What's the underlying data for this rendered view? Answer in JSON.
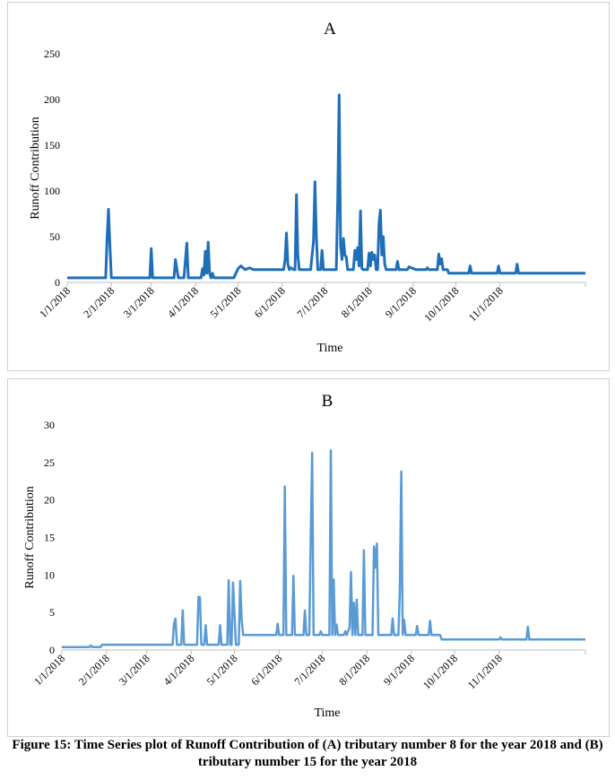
{
  "caption": "Figure 15: Time Series plot of Runoff Contribution of (A) tributary number 8 for the year 2018 and (B) tributary number 15 for the year 2018",
  "chart_data": [
    {
      "type": "line",
      "title": "A",
      "xlabel": "Time",
      "ylabel": "Runoff Contribution",
      "ylim": [
        0,
        250
      ],
      "yticks": [
        "0",
        "50",
        "100",
        "150",
        "200",
        "250"
      ],
      "xlim": [
        "2018-01-01",
        "2018-12-31"
      ],
      "xticks": [
        "1/1/2018",
        "2/1/2018",
        "3/1/2018",
        "4/1/2018",
        "5/1/2018",
        "6/1/2018",
        "7/1/2018",
        "8/1/2018",
        "9/1/2018",
        "10/1/2018",
        "11/1/2018"
      ],
      "grid": false,
      "legend": "none",
      "color": "#1f6fb8",
      "series": [
        {
          "points": [
            [
              "2018-01-01",
              5
            ],
            [
              "2018-01-28",
              5
            ],
            [
              "2018-01-29",
              50
            ],
            [
              "2018-01-30",
              80
            ],
            [
              "2018-01-31",
              40
            ],
            [
              "2018-02-01",
              5
            ],
            [
              "2018-02-28",
              5
            ],
            [
              "2018-03-01",
              37
            ],
            [
              "2018-03-02",
              5
            ],
            [
              "2018-03-17",
              5
            ],
            [
              "2018-03-18",
              25
            ],
            [
              "2018-03-19",
              15
            ],
            [
              "2018-03-20",
              5
            ],
            [
              "2018-03-24",
              5
            ],
            [
              "2018-03-26",
              43
            ],
            [
              "2018-03-27",
              5
            ],
            [
              "2018-04-05",
              5
            ],
            [
              "2018-04-06",
              15
            ],
            [
              "2018-04-07",
              8
            ],
            [
              "2018-04-08",
              34
            ],
            [
              "2018-04-09",
              10
            ],
            [
              "2018-04-10",
              44
            ],
            [
              "2018-04-11",
              10
            ],
            [
              "2018-04-12",
              5
            ],
            [
              "2018-04-13",
              10
            ],
            [
              "2018-04-14",
              5
            ],
            [
              "2018-04-28",
              5
            ],
            [
              "2018-05-01",
              15
            ],
            [
              "2018-05-03",
              18
            ],
            [
              "2018-05-06",
              14
            ],
            [
              "2018-05-09",
              16
            ],
            [
              "2018-05-12",
              14
            ],
            [
              "2018-06-02",
              14
            ],
            [
              "2018-06-03",
              25
            ],
            [
              "2018-06-04",
              54
            ],
            [
              "2018-06-05",
              20
            ],
            [
              "2018-06-06",
              14
            ],
            [
              "2018-06-07",
              16
            ],
            [
              "2018-06-09",
              14
            ],
            [
              "2018-06-10",
              14
            ],
            [
              "2018-06-11",
              96
            ],
            [
              "2018-06-12",
              30
            ],
            [
              "2018-06-13",
              14
            ],
            [
              "2018-06-21",
              14
            ],
            [
              "2018-06-23",
              45
            ],
            [
              "2018-06-24",
              110
            ],
            [
              "2018-06-25",
              50
            ],
            [
              "2018-06-26",
              14
            ],
            [
              "2018-06-28",
              14
            ],
            [
              "2018-06-29",
              35
            ],
            [
              "2018-06-30",
              14
            ],
            [
              "2018-07-09",
              14
            ],
            [
              "2018-07-10",
              90
            ],
            [
              "2018-07-11",
              205
            ],
            [
              "2018-07-12",
              40
            ],
            [
              "2018-07-13",
              25
            ],
            [
              "2018-07-14",
              48
            ],
            [
              "2018-07-15",
              30
            ],
            [
              "2018-07-16",
              28
            ],
            [
              "2018-07-17",
              14
            ],
            [
              "2018-07-21",
              14
            ],
            [
              "2018-07-22",
              35
            ],
            [
              "2018-07-23",
              25
            ],
            [
              "2018-07-24",
              38
            ],
            [
              "2018-07-25",
              18
            ],
            [
              "2018-07-26",
              78
            ],
            [
              "2018-07-27",
              15
            ],
            [
              "2018-07-28",
              14
            ],
            [
              "2018-07-31",
              14
            ],
            [
              "2018-08-01",
              32
            ],
            [
              "2018-08-02",
              18
            ],
            [
              "2018-08-03",
              33
            ],
            [
              "2018-08-04",
              25
            ],
            [
              "2018-08-05",
              30
            ],
            [
              "2018-08-06",
              14
            ],
            [
              "2018-08-07",
              14
            ],
            [
              "2018-08-08",
              65
            ],
            [
              "2018-08-09",
              79
            ],
            [
              "2018-08-10",
              30
            ],
            [
              "2018-08-11",
              50
            ],
            [
              "2018-08-12",
              20
            ],
            [
              "2018-08-13",
              14
            ],
            [
              "2018-08-20",
              14
            ],
            [
              "2018-08-21",
              23
            ],
            [
              "2018-08-22",
              14
            ],
            [
              "2018-08-28",
              14
            ],
            [
              "2018-08-29",
              17
            ],
            [
              "2018-09-03",
              14
            ],
            [
              "2018-09-10",
              14
            ],
            [
              "2018-09-11",
              16
            ],
            [
              "2018-09-12",
              14
            ],
            [
              "2018-09-18",
              14
            ],
            [
              "2018-09-19",
              31
            ],
            [
              "2018-09-20",
              20
            ],
            [
              "2018-09-21",
              26
            ],
            [
              "2018-09-22",
              14
            ],
            [
              "2018-09-25",
              14
            ],
            [
              "2018-09-26",
              10
            ],
            [
              "2018-10-10",
              10
            ],
            [
              "2018-10-11",
              18
            ],
            [
              "2018-10-12",
              10
            ],
            [
              "2018-10-30",
              10
            ],
            [
              "2018-10-31",
              18
            ],
            [
              "2018-11-01",
              10
            ],
            [
              "2018-11-12",
              10
            ],
            [
              "2018-11-13",
              20
            ],
            [
              "2018-11-14",
              10
            ],
            [
              "2018-12-31",
              10
            ]
          ]
        }
      ]
    },
    {
      "type": "line",
      "title": "B",
      "xlabel": "Time",
      "ylabel": "Runoff Contribution",
      "ylim": [
        0,
        30
      ],
      "yticks": [
        "0",
        "5",
        "10",
        "15",
        "20",
        "25",
        "30"
      ],
      "xlim": [
        "2018-01-01",
        "2018-12-31"
      ],
      "xticks": [
        "1/1/2018",
        "2/1/2018",
        "3/1/2018",
        "4/1/2018",
        "5/1/2018",
        "6/1/2018",
        "7/1/2018",
        "8/1/2018",
        "9/1/2018",
        "10/1/2018",
        "11/1/2018"
      ],
      "grid": false,
      "legend": "none",
      "color": "#5b9bd5",
      "series": [
        {
          "points": [
            [
              "2018-01-01",
              0.4
            ],
            [
              "2018-01-20",
              0.4
            ],
            [
              "2018-01-21",
              0.6
            ],
            [
              "2018-01-22",
              0.4
            ],
            [
              "2018-01-28",
              0.4
            ],
            [
              "2018-01-29",
              0.7
            ],
            [
              "2018-03-19",
              0.7
            ],
            [
              "2018-03-20",
              3.5
            ],
            [
              "2018-03-21",
              4.2
            ],
            [
              "2018-03-22",
              0.7
            ],
            [
              "2018-03-25",
              0.7
            ],
            [
              "2018-03-26",
              5.3
            ],
            [
              "2018-03-27",
              0.7
            ],
            [
              "2018-04-05",
              0.7
            ],
            [
              "2018-04-06",
              7.1
            ],
            [
              "2018-04-07",
              7.0
            ],
            [
              "2018-04-08",
              0.7
            ],
            [
              "2018-04-10",
              0.7
            ],
            [
              "2018-04-11",
              3.3
            ],
            [
              "2018-04-12",
              0.7
            ],
            [
              "2018-04-20",
              0.7
            ],
            [
              "2018-04-21",
              3.3
            ],
            [
              "2018-04-22",
              0.7
            ],
            [
              "2018-04-26",
              0.7
            ],
            [
              "2018-04-27",
              9.3
            ],
            [
              "2018-04-28",
              0.7
            ],
            [
              "2018-04-29",
              0.7
            ],
            [
              "2018-04-30",
              9.0
            ],
            [
              "2018-05-01",
              5.0
            ],
            [
              "2018-05-02",
              0.7
            ],
            [
              "2018-05-04",
              0.7
            ],
            [
              "2018-05-05",
              9.2
            ],
            [
              "2018-05-06",
              4.1
            ],
            [
              "2018-05-07",
              2.0
            ],
            [
              "2018-05-30",
              2.0
            ],
            [
              "2018-05-31",
              3.5
            ],
            [
              "2018-06-01",
              2.0
            ],
            [
              "2018-06-04",
              2.0
            ],
            [
              "2018-06-05",
              21.8
            ],
            [
              "2018-06-06",
              2.0
            ],
            [
              "2018-06-10",
              2.0
            ],
            [
              "2018-06-11",
              9.9
            ],
            [
              "2018-06-12",
              2.0
            ],
            [
              "2018-06-18",
              2.0
            ],
            [
              "2018-06-19",
              5.3
            ],
            [
              "2018-06-20",
              2.0
            ],
            [
              "2018-06-22",
              2.0
            ],
            [
              "2018-06-23",
              15.0
            ],
            [
              "2018-06-24",
              26.3
            ],
            [
              "2018-06-25",
              2.0
            ],
            [
              "2018-06-29",
              2.0
            ],
            [
              "2018-06-30",
              2.5
            ],
            [
              "2018-07-01",
              2.0
            ],
            [
              "2018-07-06",
              2.0
            ],
            [
              "2018-07-07",
              26.6
            ],
            [
              "2018-07-08",
              2.0
            ],
            [
              "2018-07-09",
              9.4
            ],
            [
              "2018-07-10",
              2.0
            ],
            [
              "2018-07-11",
              3.4
            ],
            [
              "2018-07-12",
              2.0
            ],
            [
              "2018-07-16",
              2.0
            ],
            [
              "2018-07-17",
              2.5
            ],
            [
              "2018-07-18",
              2.0
            ],
            [
              "2018-07-20",
              3.0
            ],
            [
              "2018-07-21",
              10.4
            ],
            [
              "2018-07-22",
              2.0
            ],
            [
              "2018-07-23",
              6.3
            ],
            [
              "2018-07-24",
              2.0
            ],
            [
              "2018-07-25",
              6.7
            ],
            [
              "2018-07-26",
              2.0
            ],
            [
              "2018-07-29",
              2.0
            ],
            [
              "2018-07-30",
              13.3
            ],
            [
              "2018-07-31",
              2.0
            ],
            [
              "2018-08-05",
              2.0
            ],
            [
              "2018-08-06",
              13.8
            ],
            [
              "2018-08-07",
              11.0
            ],
            [
              "2018-08-08",
              14.2
            ],
            [
              "2018-08-09",
              2.0
            ],
            [
              "2018-08-18",
              2.0
            ],
            [
              "2018-08-19",
              4.2
            ],
            [
              "2018-08-20",
              2.0
            ],
            [
              "2018-08-23",
              2.0
            ],
            [
              "2018-08-24",
              8.0
            ],
            [
              "2018-08-25",
              23.8
            ],
            [
              "2018-08-26",
              2.0
            ],
            [
              "2018-08-27",
              4.0
            ],
            [
              "2018-08-28",
              2.0
            ],
            [
              "2018-09-04",
              2.0
            ],
            [
              "2018-09-05",
              3.2
            ],
            [
              "2018-09-06",
              2.0
            ],
            [
              "2018-09-13",
              2.0
            ],
            [
              "2018-09-14",
              3.9
            ],
            [
              "2018-09-15",
              2.0
            ],
            [
              "2018-09-21",
              2.0
            ],
            [
              "2018-09-22",
              1.4
            ],
            [
              "2018-11-01",
              1.4
            ],
            [
              "2018-11-02",
              1.7
            ],
            [
              "2018-11-03",
              1.4
            ],
            [
              "2018-11-20",
              1.4
            ],
            [
              "2018-11-21",
              3.1
            ],
            [
              "2018-11-22",
              1.4
            ],
            [
              "2018-12-31",
              1.4
            ]
          ]
        }
      ]
    }
  ]
}
